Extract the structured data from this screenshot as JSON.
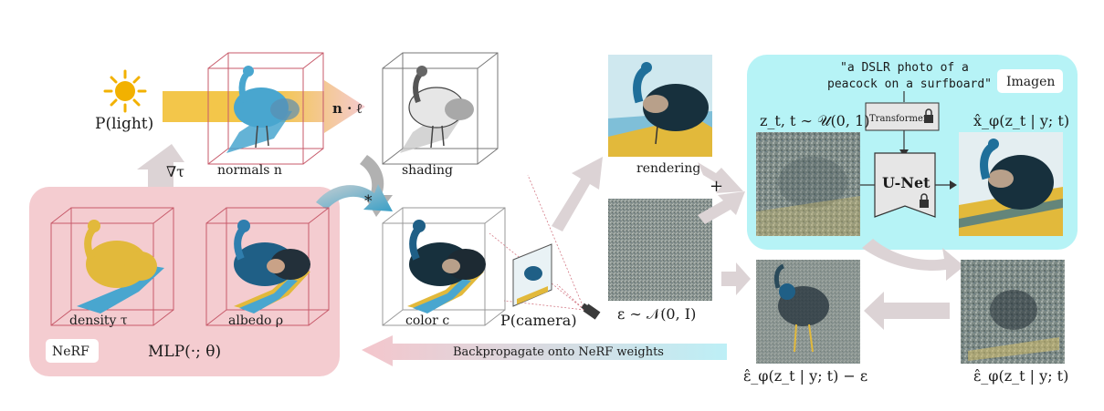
{
  "light": {
    "label": "P(light)",
    "sun_color": "#f2b100"
  },
  "normals": {
    "label": "normals n"
  },
  "shading": {
    "label": "shading"
  },
  "dot_label": "n · ℓ",
  "grad_label": "∇τ",
  "mult_symbol": "*",
  "nerf": {
    "badge": "NeRF",
    "mlp_label": "MLP(·; θ)",
    "density_label": "density τ",
    "albedo_label": "albedo ρ",
    "panel_color": "#f4ccd0"
  },
  "color_label": "color c",
  "camera_label": "P(camera)",
  "rendering_label": "rendering",
  "plus_symbol": "+",
  "noise_label": "ε ∼ 𝒩(0, I)",
  "imagen": {
    "badge": "Imagen",
    "prompt_line1": "\"a DSLR photo of a",
    "prompt_line2": "peacock on a surfboard\"",
    "transformer_label": "Transformer",
    "unet_label": "U-Net",
    "zt_label": "z_t, t ∼ 𝒰(0, 1)",
    "xhat_label": "x̂_φ(z_t | y; t)",
    "panel_color": "#b6f3f6"
  },
  "eps_hat_label": "ε̂_φ(z_t | y; t)",
  "eps_diff_label": "ε̂_φ(z_t | y; t) − ε",
  "backprop_label": "Backpropagate onto NeRF weights",
  "colors": {
    "yellow": "#e2b93b",
    "blue": "#49a6cf",
    "dark": "#23303a",
    "arrow_gray": "#dcd3d5",
    "arrow_pink": "#f0c9cd",
    "box_red": "#c75a6a"
  }
}
